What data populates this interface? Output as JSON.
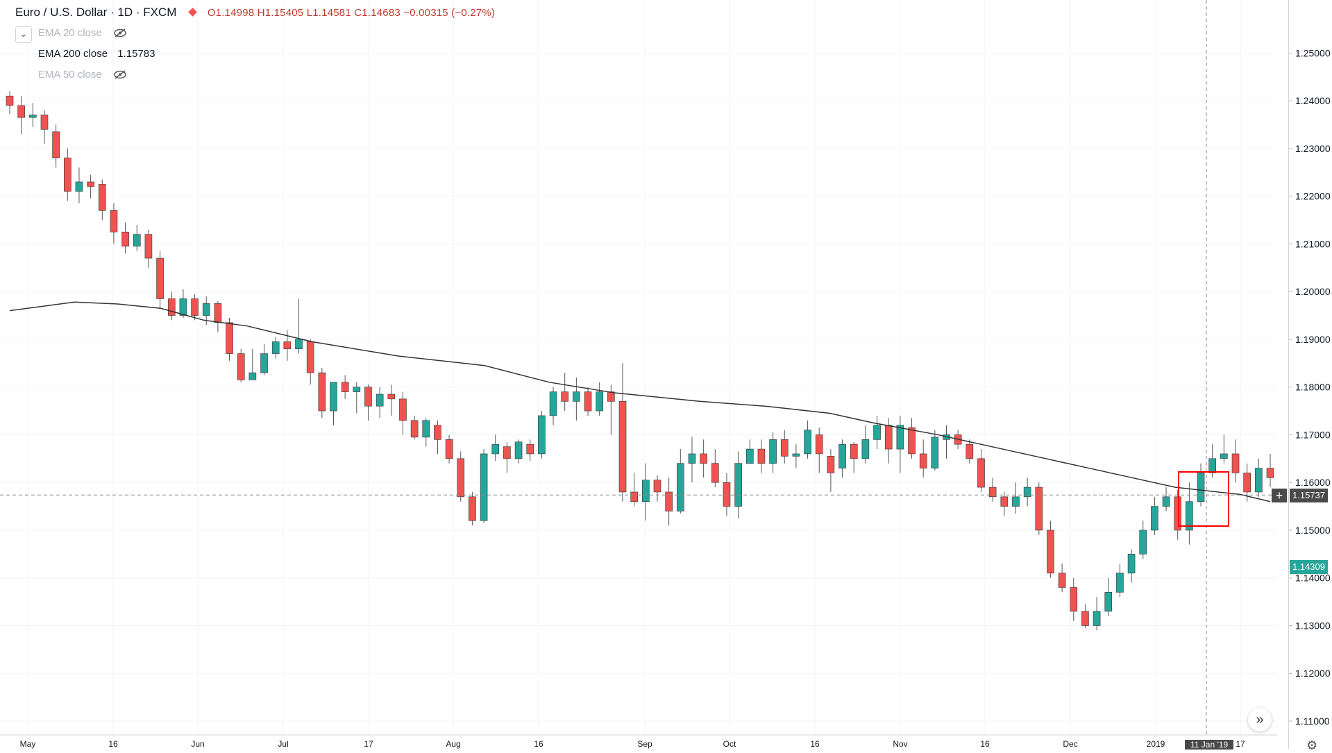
{
  "header": {
    "symbol": "Euro / U.S. Dollar · 1D · FXCM",
    "ohlc": "O1.14998 H1.15405 L1.14581 C1.14683 −0.00315 (−0.27%)"
  },
  "indicators": [
    {
      "label": "EMA 20 close",
      "value": "",
      "hidden": true
    },
    {
      "label": "EMA 200 close",
      "value": "1.15783",
      "hidden": false
    },
    {
      "label": "EMA 50 close",
      "value": "",
      "hidden": true
    }
  ],
  "icons": {
    "collapse": "chevron-down-icon",
    "eye": "eye-off-icon",
    "add": "plus-icon",
    "scroll": "double-chevron-right-icon",
    "settings": "gear-icon"
  },
  "colors": {
    "up": "#26a69a",
    "down": "#ef5350",
    "ema200": "#333333",
    "crosshair_tag": "#4a4a4a",
    "last_price_tag": "#26a69a",
    "highlight_box": "#ff0000"
  },
  "crosshair": {
    "price_label": "1.15737",
    "date_label": "11 Jan '19",
    "add_label": "+"
  },
  "last_price": {
    "label": "1.14309"
  },
  "scroll_label": "»",
  "chart_data": {
    "type": "candlestick",
    "title": "Euro / U.S. Dollar · 1D · FXCM",
    "ylim": [
      1.11,
      1.255
    ],
    "y_ticks": [
      "1.25000",
      "1.24000",
      "1.23000",
      "1.22000",
      "1.21000",
      "1.20000",
      "1.19000",
      "1.18000",
      "1.17000",
      "1.16000",
      "1.15000",
      "1.14000",
      "1.13000",
      "1.12000",
      "1.11000"
    ],
    "x_ticks": [
      "May",
      "16",
      "Jun",
      "Jul",
      "17",
      "Aug",
      "16",
      "Sep",
      "Oct",
      "16",
      "Nov",
      "16",
      "Dec",
      "2019",
      "17"
    ],
    "crosshair_price": 1.15737,
    "crosshair_date": "11 Jan '19",
    "last_price": 1.14309,
    "ema200_close": 1.15783,
    "ema200_line": [
      [
        0,
        1.196
      ],
      [
        15,
        1.1978
      ],
      [
        25,
        1.1974
      ],
      [
        35,
        1.1965
      ],
      [
        45,
        1.194
      ],
      [
        55,
        1.1928
      ],
      [
        70,
        1.1895
      ],
      [
        90,
        1.1865
      ],
      [
        110,
        1.1845
      ],
      [
        125,
        1.181
      ],
      [
        140,
        1.1788
      ],
      [
        160,
        1.177
      ],
      [
        175,
        1.176
      ],
      [
        190,
        1.1745
      ],
      [
        200,
        1.1725
      ],
      [
        215,
        1.17
      ],
      [
        230,
        1.167
      ],
      [
        250,
        1.163
      ],
      [
        270,
        1.159
      ],
      [
        285,
        1.1575
      ],
      [
        292,
        1.156
      ]
    ],
    "candles": [
      [
        1.241,
        1.239,
        1.242,
        1.2372
      ],
      [
        1.239,
        1.2365,
        1.241,
        1.233
      ],
      [
        1.2365,
        1.237,
        1.2395,
        1.2345
      ],
      [
        1.237,
        1.234,
        1.238,
        1.231
      ],
      [
        1.2335,
        1.228,
        1.235,
        1.226
      ],
      [
        1.228,
        1.221,
        1.23,
        1.219
      ],
      [
        1.221,
        1.223,
        1.226,
        1.2185
      ],
      [
        1.223,
        1.222,
        1.2245,
        1.2195
      ],
      [
        1.2225,
        1.217,
        1.2235,
        1.215
      ],
      [
        1.217,
        1.2125,
        1.2185,
        1.21
      ],
      [
        1.2125,
        1.2095,
        1.2145,
        1.208
      ],
      [
        1.2095,
        1.212,
        1.214,
        1.2085
      ],
      [
        1.212,
        1.207,
        1.213,
        1.205
      ],
      [
        1.207,
        1.1985,
        1.2085,
        1.1965
      ],
      [
        1.1985,
        1.195,
        1.2,
        1.194
      ],
      [
        1.195,
        1.1985,
        1.2005,
        1.1945
      ],
      [
        1.1985,
        1.195,
        1.1995,
        1.194
      ],
      [
        1.195,
        1.1975,
        1.199,
        1.193
      ],
      [
        1.1975,
        1.1935,
        1.198,
        1.1915
      ],
      [
        1.1935,
        1.187,
        1.1945,
        1.1855
      ],
      [
        1.187,
        1.1815,
        1.188,
        1.181
      ],
      [
        1.1815,
        1.183,
        1.188,
        1.1815
      ],
      [
        1.183,
        1.187,
        1.189,
        1.1825
      ],
      [
        1.187,
        1.1895,
        1.1905,
        1.186
      ],
      [
        1.1895,
        1.188,
        1.192,
        1.1855
      ],
      [
        1.188,
        1.19,
        1.1985,
        1.187
      ],
      [
        1.1895,
        1.183,
        1.19,
        1.1805
      ],
      [
        1.183,
        1.175,
        1.184,
        1.1735
      ],
      [
        1.175,
        1.181,
        1.181,
        1.172
      ],
      [
        1.181,
        1.179,
        1.1825,
        1.1775
      ],
      [
        1.179,
        1.18,
        1.181,
        1.1745
      ],
      [
        1.18,
        1.176,
        1.1805,
        1.173
      ],
      [
        1.176,
        1.1785,
        1.18,
        1.1735
      ],
      [
        1.1785,
        1.1775,
        1.1805,
        1.174
      ],
      [
        1.1775,
        1.173,
        1.179,
        1.17
      ],
      [
        1.173,
        1.1695,
        1.174,
        1.169
      ],
      [
        1.1695,
        1.173,
        1.1735,
        1.1675
      ],
      [
        1.172,
        1.169,
        1.173,
        1.166
      ],
      [
        1.169,
        1.165,
        1.17,
        1.164
      ],
      [
        1.165,
        1.157,
        1.1665,
        1.156
      ],
      [
        1.157,
        1.152,
        1.158,
        1.151
      ],
      [
        1.152,
        1.166,
        1.167,
        1.1515
      ],
      [
        1.166,
        1.168,
        1.17,
        1.1645
      ],
      [
        1.1675,
        1.165,
        1.1685,
        1.162
      ],
      [
        1.165,
        1.1685,
        1.169,
        1.164
      ],
      [
        1.168,
        1.166,
        1.169,
        1.1645
      ],
      [
        1.166,
        1.174,
        1.175,
        1.165
      ],
      [
        1.174,
        1.179,
        1.18,
        1.172
      ],
      [
        1.179,
        1.177,
        1.183,
        1.175
      ],
      [
        1.177,
        1.179,
        1.182,
        1.173
      ],
      [
        1.179,
        1.175,
        1.18,
        1.174
      ],
      [
        1.175,
        1.179,
        1.181,
        1.174
      ],
      [
        1.179,
        1.177,
        1.1805,
        1.17
      ],
      [
        1.177,
        1.158,
        1.185,
        1.156
      ],
      [
        1.158,
        1.156,
        1.162,
        1.155
      ],
      [
        1.156,
        1.1605,
        1.164,
        1.152
      ],
      [
        1.1605,
        1.158,
        1.1615,
        1.156
      ],
      [
        1.158,
        1.154,
        1.161,
        1.151
      ],
      [
        1.154,
        1.164,
        1.167,
        1.1535
      ],
      [
        1.164,
        1.166,
        1.1695,
        1.16
      ],
      [
        1.166,
        1.164,
        1.169,
        1.161
      ],
      [
        1.164,
        1.16,
        1.167,
        1.159
      ],
      [
        1.16,
        1.155,
        1.162,
        1.153
      ],
      [
        1.155,
        1.164,
        1.1665,
        1.1525
      ],
      [
        1.164,
        1.167,
        1.169,
        1.164
      ],
      [
        1.167,
        1.164,
        1.169,
        1.162
      ],
      [
        1.164,
        1.169,
        1.1705,
        1.162
      ],
      [
        1.169,
        1.1655,
        1.171,
        1.164
      ],
      [
        1.1655,
        1.166,
        1.168,
        1.163
      ],
      [
        1.166,
        1.171,
        1.173,
        1.165
      ],
      [
        1.17,
        1.166,
        1.1715,
        1.162
      ],
      [
        1.1655,
        1.162,
        1.167,
        1.158
      ],
      [
        1.163,
        1.168,
        1.169,
        1.161
      ],
      [
        1.168,
        1.165,
        1.1685,
        1.162
      ],
      [
        1.165,
        1.169,
        1.172,
        1.164
      ],
      [
        1.169,
        1.172,
        1.174,
        1.167
      ],
      [
        1.172,
        1.167,
        1.1735,
        1.164
      ],
      [
        1.167,
        1.172,
        1.174,
        1.162
      ],
      [
        1.1715,
        1.166,
        1.1735,
        1.165
      ],
      [
        1.166,
        1.163,
        1.169,
        1.161
      ],
      [
        1.163,
        1.1695,
        1.171,
        1.1625
      ],
      [
        1.169,
        1.17,
        1.172,
        1.165
      ],
      [
        1.17,
        1.168,
        1.171,
        1.167
      ],
      [
        1.168,
        1.165,
        1.169,
        1.164
      ],
      [
        1.165,
        1.159,
        1.167,
        1.158
      ],
      [
        1.159,
        1.157,
        1.161,
        1.156
      ],
      [
        1.157,
        1.155,
        1.158,
        1.153
      ],
      [
        1.155,
        1.157,
        1.16,
        1.1535
      ],
      [
        1.157,
        1.159,
        1.161,
        1.155
      ],
      [
        1.159,
        1.15,
        1.16,
        1.149
      ],
      [
        1.15,
        1.141,
        1.152,
        1.14
      ],
      [
        1.141,
        1.138,
        1.143,
        1.137
      ],
      [
        1.138,
        1.133,
        1.14,
        1.131
      ],
      [
        1.133,
        1.13,
        1.1345,
        1.1295
      ],
      [
        1.13,
        1.133,
        1.136,
        1.129
      ],
      [
        1.133,
        1.137,
        1.14,
        1.132
      ],
      [
        1.137,
        1.141,
        1.143,
        1.136
      ],
      [
        1.141,
        1.145,
        1.146,
        1.139
      ],
      [
        1.145,
        1.15,
        1.152,
        1.144
      ],
      [
        1.15,
        1.155,
        1.157,
        1.149
      ],
      [
        1.155,
        1.157,
        1.159,
        1.154
      ],
      [
        1.157,
        1.15,
        1.1585,
        1.148
      ],
      [
        1.15,
        1.156,
        1.16,
        1.147
      ],
      [
        1.156,
        1.162,
        1.164,
        1.155
      ],
      [
        1.162,
        1.165,
        1.168,
        1.161
      ],
      [
        1.165,
        1.166,
        1.17,
        1.164
      ],
      [
        1.166,
        1.162,
        1.169,
        1.16
      ],
      [
        1.162,
        1.158,
        1.164,
        1.156
      ],
      [
        1.158,
        1.163,
        1.165,
        1.157
      ],
      [
        1.163,
        1.161,
        1.166,
        1.159
      ]
    ]
  }
}
